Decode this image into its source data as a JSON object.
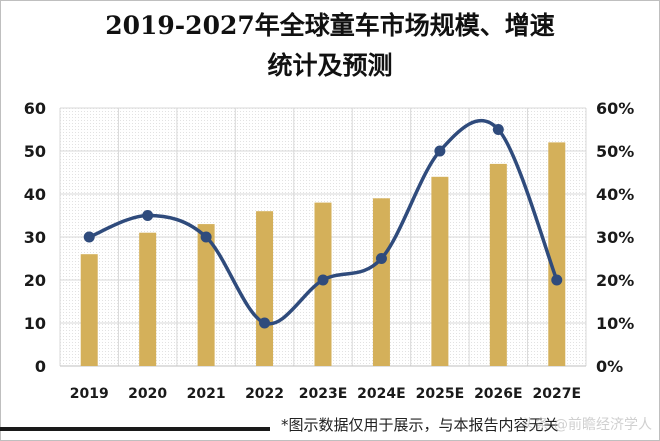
{
  "title": {
    "line1": "2019-2027年全球童车市场规模、增速",
    "line2": "统计及预测"
  },
  "footnote": "*图示数据仅用于展示，与本报告内容无关",
  "watermark": "头条 @前瞻经济学人",
  "colors": {
    "bar": "#d4b05a",
    "line": "#2f4b7c",
    "grid": "#d9d9d9",
    "axis_text": "#1a1a1a"
  },
  "chart_data": {
    "type": "bar+line",
    "categories": [
      "2019",
      "2020",
      "2021",
      "2022",
      "2023E",
      "2024E",
      "2025E",
      "2026E",
      "2027E"
    ],
    "series": [
      {
        "type": "bar",
        "axis": "left",
        "values": [
          26,
          31,
          33,
          36,
          38,
          39,
          44,
          47,
          52
        ]
      },
      {
        "type": "line",
        "axis": "right",
        "smooth": true,
        "values": [
          30,
          35,
          30,
          10,
          20,
          25,
          50,
          55,
          20
        ]
      }
    ],
    "y_left": {
      "min": 0,
      "max": 60,
      "step": 10,
      "ticks": [
        "0",
        "10",
        "20",
        "30",
        "40",
        "50",
        "60"
      ]
    },
    "y_right": {
      "min": 0,
      "max": 60,
      "step": 10,
      "ticks": [
        "0%",
        "10%",
        "20%",
        "30%",
        "40%",
        "50%",
        "60%"
      ]
    },
    "grid": true,
    "plot_background": "dotted"
  }
}
